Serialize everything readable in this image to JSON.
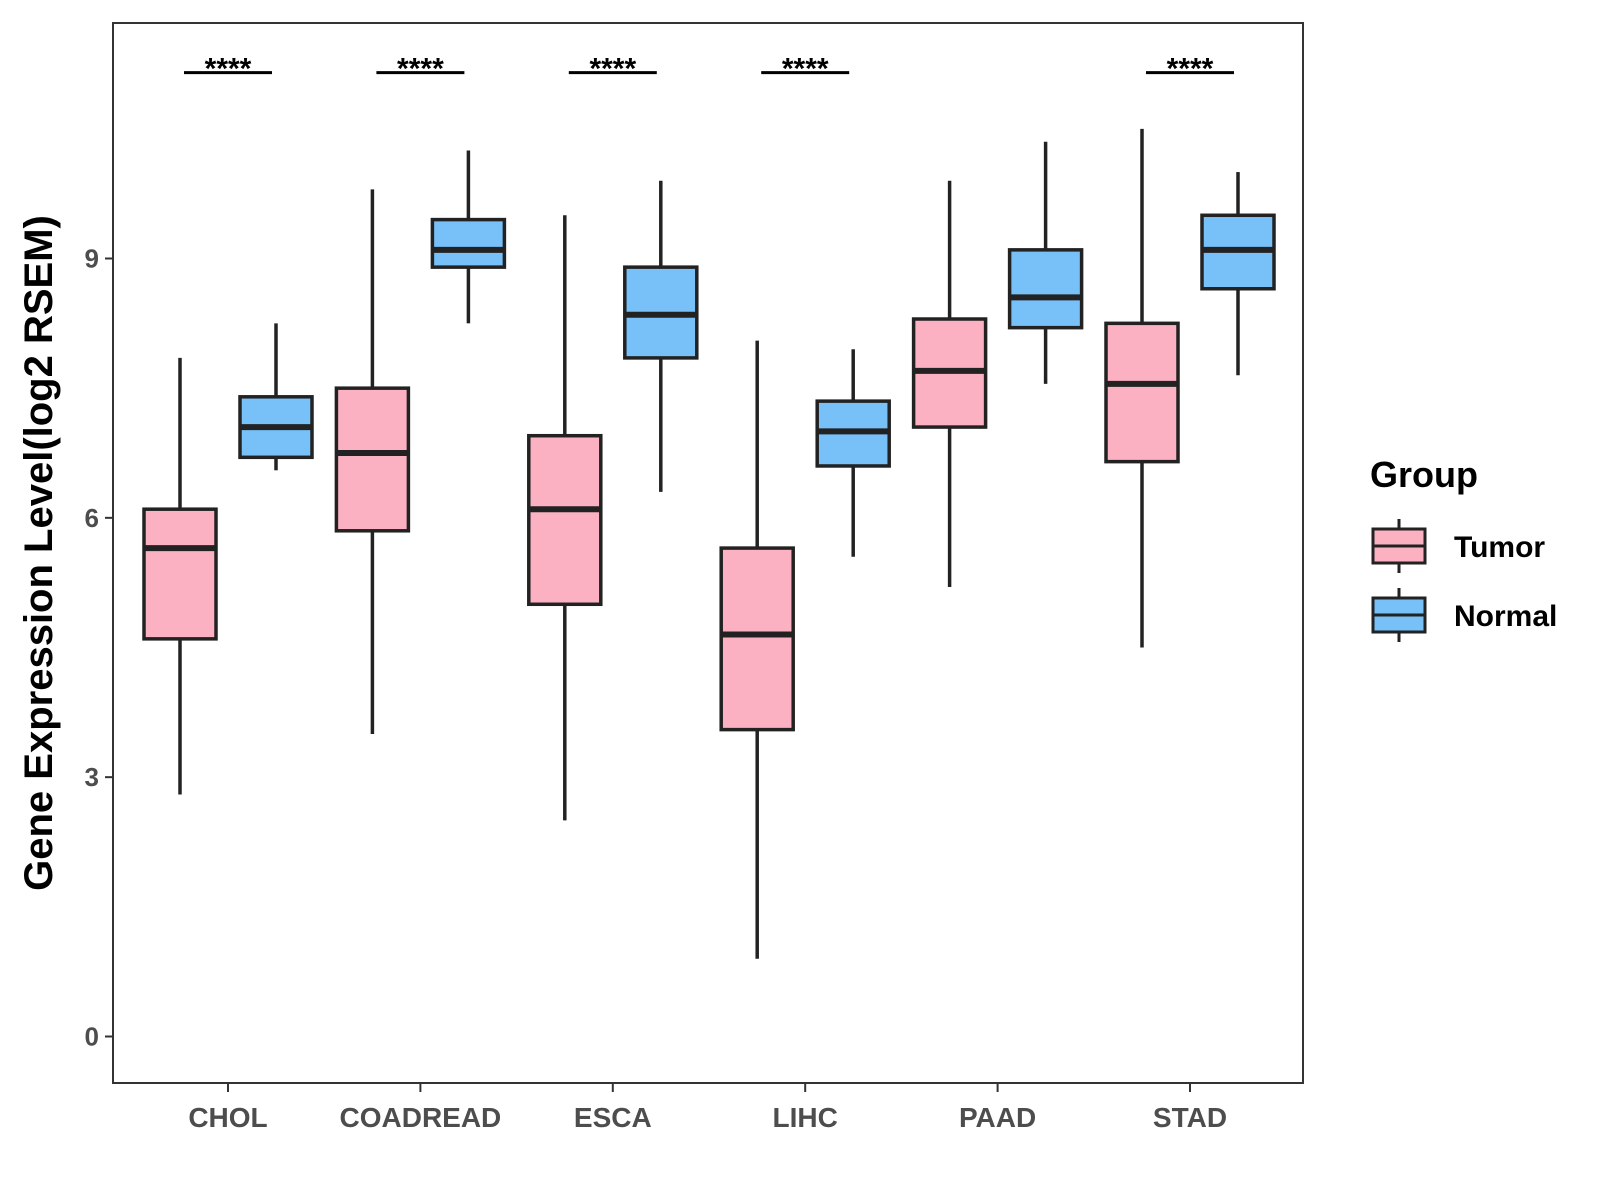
{
  "chart_data": {
    "type": "boxplot",
    "title": "",
    "xlabel": "",
    "ylabel": "Gene Expression Level(log2 RSEM)",
    "ylim": [
      -0.5,
      11.8
    ],
    "yticks": [
      0,
      3,
      6,
      9
    ],
    "grid": false,
    "legend": {
      "title": "Group",
      "position": "right"
    },
    "categories": [
      "CHOL",
      "COADREAD",
      "ESCA",
      "LIHC",
      "PAAD",
      "STAD"
    ],
    "series": [
      {
        "name": "Tumor",
        "color": "#FBB1C2",
        "boxes": [
          {
            "whisker_low": 2.8,
            "q1": 4.6,
            "median": 5.65,
            "q3": 6.1,
            "whisker_high": 7.85
          },
          {
            "whisker_low": 3.5,
            "q1": 5.85,
            "median": 6.75,
            "q3": 7.5,
            "whisker_high": 9.8
          },
          {
            "whisker_low": 2.5,
            "q1": 5.0,
            "median": 6.1,
            "q3": 6.95,
            "whisker_high": 9.5
          },
          {
            "whisker_low": 0.9,
            "q1": 3.55,
            "median": 4.65,
            "q3": 5.65,
            "whisker_high": 8.05
          },
          {
            "whisker_low": 5.2,
            "q1": 7.05,
            "median": 7.7,
            "q3": 8.3,
            "whisker_high": 9.9
          },
          {
            "whisker_low": 4.5,
            "q1": 6.65,
            "median": 7.55,
            "q3": 8.25,
            "whisker_high": 10.5
          }
        ]
      },
      {
        "name": "Normal",
        "color": "#77C0F8",
        "boxes": [
          {
            "whisker_low": 6.55,
            "q1": 6.7,
            "median": 7.05,
            "q3": 7.4,
            "whisker_high": 8.25
          },
          {
            "whisker_low": 8.25,
            "q1": 8.9,
            "median": 9.1,
            "q3": 9.45,
            "whisker_high": 10.25
          },
          {
            "whisker_low": 6.3,
            "q1": 7.85,
            "median": 8.35,
            "q3": 8.9,
            "whisker_high": 9.9
          },
          {
            "whisker_low": 5.55,
            "q1": 6.6,
            "median": 7.0,
            "q3": 7.35,
            "whisker_high": 7.95
          },
          {
            "whisker_low": 7.55,
            "q1": 8.2,
            "median": 8.55,
            "q3": 9.1,
            "whisker_high": 10.35
          },
          {
            "whisker_low": 7.65,
            "q1": 8.65,
            "median": 9.1,
            "q3": 9.5,
            "whisker_high": 10.0
          }
        ]
      }
    ],
    "significance": [
      {
        "category": "CHOL",
        "label": "****"
      },
      {
        "category": "COADREAD",
        "label": "****"
      },
      {
        "category": "ESCA",
        "label": "****"
      },
      {
        "category": "LIHC",
        "label": "****"
      },
      {
        "category": "PAAD",
        "label": ""
      },
      {
        "category": "STAD",
        "label": "****"
      }
    ],
    "significance_level": 11.15
  },
  "colors": {
    "tumor_fill": "#FBB1C2",
    "normal_fill": "#77C0F8",
    "stroke": "#222222",
    "axis": "#333333"
  }
}
